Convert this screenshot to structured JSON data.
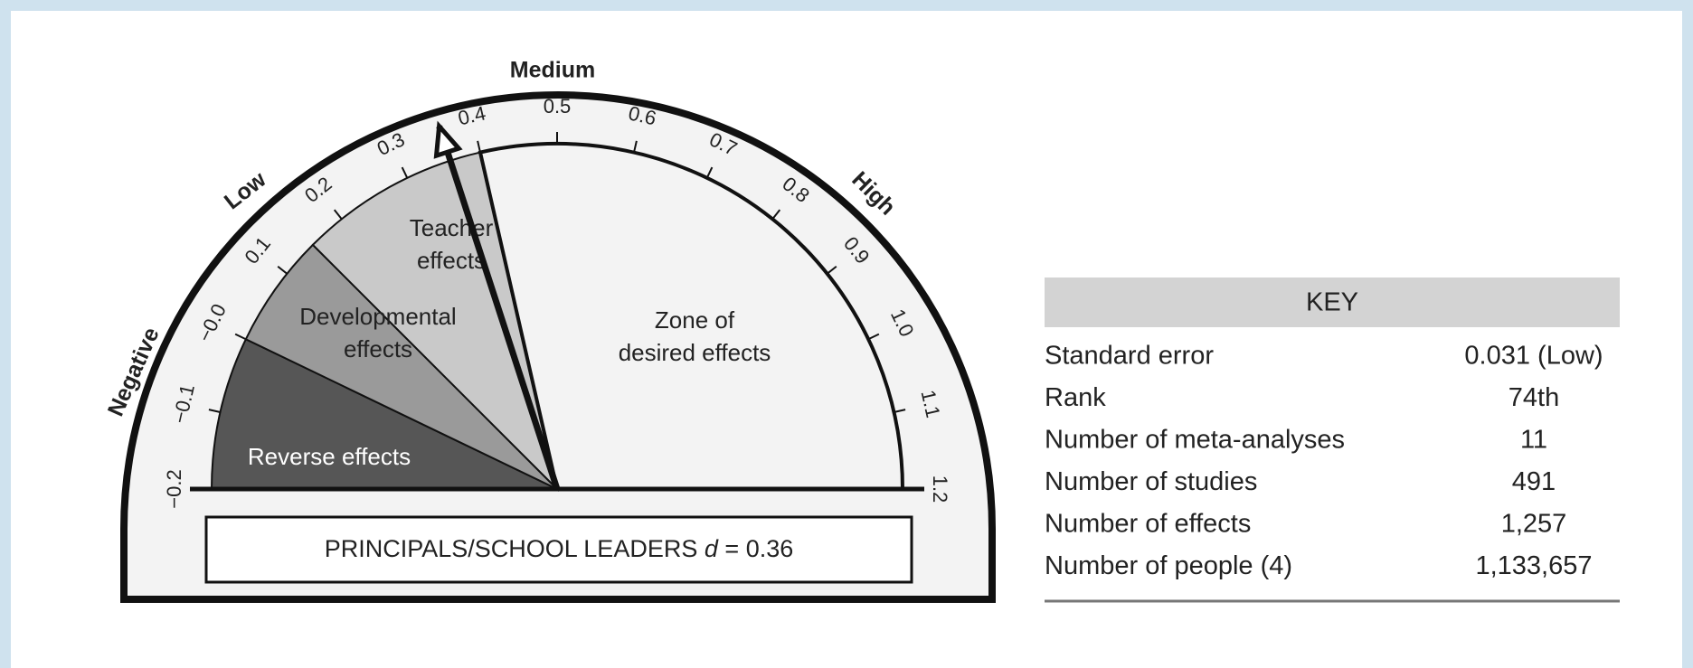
{
  "chart_data": {
    "type": "gauge",
    "title_text": "PRINCIPALS/SCHOOL LEADERS",
    "title_symbol": "d",
    "title_equals": "=",
    "value": 0.36,
    "xlim": [
      -0.2,
      1.2
    ],
    "xticks": [
      {
        "value": -0.2,
        "label": "−0.2"
      },
      {
        "value": -0.1,
        "label": "−0.1"
      },
      {
        "value": 0,
        "label": "−0.0"
      },
      0.1,
      0.2,
      0.3,
      0.4,
      0.5,
      0.6,
      0.7,
      0.8,
      0.9,
      {
        "value": 1,
        "label": "1.0"
      },
      1.1,
      1.2
    ],
    "zones": [
      {
        "label": [
          "Reverse effects"
        ],
        "range": [
          -0.2,
          0
        ],
        "color": "#565656",
        "text_color": "#ffffff"
      },
      {
        "label": [
          "Developmental",
          "effects"
        ],
        "range": [
          0,
          0.15
        ],
        "color": "#9a9a9a",
        "text_color": "#222222"
      },
      {
        "label": [
          "Teacher",
          "effects"
        ],
        "range": [
          0.15,
          0.4
        ],
        "color": "#c9c9c9",
        "text_color": "#222222"
      },
      {
        "label": [
          "Zone of",
          "desired effects"
        ],
        "range": [
          0.4,
          1.2
        ],
        "color": "#f3f3f3",
        "text_color": "#222222"
      }
    ],
    "bands": [
      "Negative",
      "Low",
      "Medium",
      "High"
    ],
    "key": {
      "title": "KEY",
      "rows": [
        [
          "Standard error",
          "0.031 (Low)"
        ],
        [
          "Rank",
          "74th"
        ],
        [
          "Number of meta-analyses",
          "11"
        ],
        [
          "Number of studies",
          "491"
        ],
        [
          "Number of effects",
          "1,257"
        ],
        [
          "Number of people (4)",
          "1,133,657"
        ]
      ]
    }
  }
}
